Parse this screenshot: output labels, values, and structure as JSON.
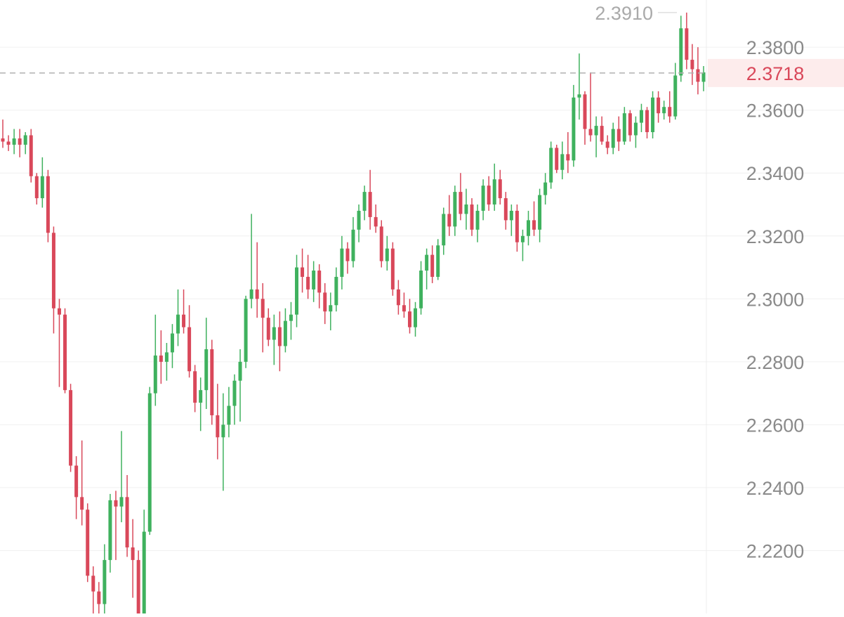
{
  "chart_data": {
    "type": "candlestick",
    "title": "",
    "xlabel": "",
    "ylabel": "",
    "ylim": [
      2.2,
      2.395
    ],
    "y_ticks": [
      "2.2200",
      "2.2400",
      "2.2600",
      "2.2800",
      "2.3000",
      "2.3200",
      "2.3400",
      "2.3600",
      "2.3800"
    ],
    "y_tick_values": [
      2.22,
      2.24,
      2.26,
      2.28,
      2.3,
      2.32,
      2.34,
      2.36,
      2.38
    ],
    "grid": true,
    "current_price": {
      "value": 2.3718,
      "label": "2.3718"
    },
    "high_marker": {
      "value": 2.391,
      "label": "2.3910"
    },
    "colors": {
      "up": "#3fb15e",
      "down": "#d9485a",
      "grid": "#f0f0f0",
      "axis_text": "#8a8a8a",
      "price_tag_bg": "#fdecec",
      "price_tag_text": "#d9485a",
      "dashed_line": "#b0b0b0"
    },
    "candles": [
      [
        2.351,
        2.357,
        2.348,
        2.35
      ],
      [
        2.35,
        2.352,
        2.347,
        2.349
      ],
      [
        2.349,
        2.354,
        2.346,
        2.351
      ],
      [
        2.351,
        2.354,
        2.345,
        2.349
      ],
      [
        2.349,
        2.353,
        2.346,
        2.352
      ],
      [
        2.352,
        2.354,
        2.337,
        2.339
      ],
      [
        2.339,
        2.34,
        2.33,
        2.332
      ],
      [
        2.332,
        2.345,
        2.329,
        2.339
      ],
      [
        2.339,
        2.341,
        2.318,
        2.321
      ],
      [
        2.321,
        2.323,
        2.289,
        2.297
      ],
      [
        2.297,
        2.3,
        2.272,
        2.295
      ],
      [
        2.295,
        2.297,
        2.27,
        2.271
      ],
      [
        2.271,
        2.273,
        2.245,
        2.247
      ],
      [
        2.247,
        2.25,
        2.23,
        2.237
      ],
      [
        2.237,
        2.255,
        2.228,
        2.233
      ],
      [
        2.233,
        2.235,
        2.21,
        2.212
      ],
      [
        2.212,
        2.215,
        2.198,
        2.207
      ],
      [
        2.207,
        2.21,
        2.2,
        2.203
      ],
      [
        2.203,
        2.222,
        2.2,
        2.217
      ],
      [
        2.217,
        2.238,
        2.213,
        2.236
      ],
      [
        2.236,
        2.239,
        2.217,
        2.234
      ],
      [
        2.234,
        2.258,
        2.229,
        2.237
      ],
      [
        2.237,
        2.244,
        2.218,
        2.221
      ],
      [
        2.221,
        2.23,
        2.205,
        2.217
      ],
      [
        2.217,
        2.22,
        2.195,
        2.196
      ],
      [
        2.196,
        2.233,
        2.195,
        2.226
      ],
      [
        2.226,
        2.272,
        2.225,
        2.27
      ],
      [
        2.27,
        2.295,
        2.266,
        2.282
      ],
      [
        2.282,
        2.29,
        2.273,
        2.28
      ],
      [
        2.28,
        2.286,
        2.274,
        2.283
      ],
      [
        2.283,
        2.292,
        2.278,
        2.289
      ],
      [
        2.289,
        2.303,
        2.285,
        2.295
      ],
      [
        2.295,
        2.303,
        2.289,
        2.291
      ],
      [
        2.291,
        2.298,
        2.275,
        2.277
      ],
      [
        2.277,
        2.279,
        2.264,
        2.267
      ],
      [
        2.267,
        2.275,
        2.258,
        2.271
      ],
      [
        2.271,
        2.294,
        2.265,
        2.284
      ],
      [
        2.284,
        2.287,
        2.26,
        2.263
      ],
      [
        2.263,
        2.273,
        2.249,
        2.256
      ],
      [
        2.256,
        2.27,
        2.239,
        2.26
      ],
      [
        2.26,
        2.272,
        2.256,
        2.266
      ],
      [
        2.266,
        2.276,
        2.26,
        2.274
      ],
      [
        2.274,
        2.284,
        2.261,
        2.28
      ],
      [
        2.28,
        2.301,
        2.278,
        2.3
      ],
      [
        2.3,
        2.327,
        2.297,
        2.303
      ],
      [
        2.303,
        2.318,
        2.294,
        2.3
      ],
      [
        2.3,
        2.305,
        2.283,
        2.294
      ],
      [
        2.294,
        2.297,
        2.285,
        2.287
      ],
      [
        2.287,
        2.295,
        2.279,
        2.291
      ],
      [
        2.291,
        2.296,
        2.277,
        2.285
      ],
      [
        2.285,
        2.297,
        2.283,
        2.293
      ],
      [
        2.293,
        2.299,
        2.287,
        2.295
      ],
      [
        2.295,
        2.314,
        2.291,
        2.31
      ],
      [
        2.31,
        2.316,
        2.302,
        2.307
      ],
      [
        2.307,
        2.314,
        2.3,
        2.303
      ],
      [
        2.303,
        2.312,
        2.299,
        2.309
      ],
      [
        2.309,
        2.311,
        2.297,
        2.302
      ],
      [
        2.302,
        2.305,
        2.292,
        2.296
      ],
      [
        2.296,
        2.302,
        2.29,
        2.298
      ],
      [
        2.298,
        2.31,
        2.296,
        2.307
      ],
      [
        2.307,
        2.32,
        2.303,
        2.316
      ],
      [
        2.316,
        2.318,
        2.308,
        2.312
      ],
      [
        2.312,
        2.326,
        2.31,
        2.322
      ],
      [
        2.322,
        2.33,
        2.318,
        2.328
      ],
      [
        2.328,
        2.336,
        2.325,
        2.334
      ],
      [
        2.334,
        2.341,
        2.322,
        2.326
      ],
      [
        2.326,
        2.33,
        2.321,
        2.323
      ],
      [
        2.323,
        2.325,
        2.31,
        2.312
      ],
      [
        2.312,
        2.32,
        2.309,
        2.316
      ],
      [
        2.316,
        2.318,
        2.301,
        2.303
      ],
      [
        2.303,
        2.306,
        2.295,
        2.298
      ],
      [
        2.298,
        2.302,
        2.294,
        2.296
      ],
      [
        2.296,
        2.3,
        2.289,
        2.291
      ],
      [
        2.291,
        2.299,
        2.288,
        2.297
      ],
      [
        2.297,
        2.312,
        2.295,
        2.309
      ],
      [
        2.309,
        2.316,
        2.303,
        2.314
      ],
      [
        2.314,
        2.317,
        2.305,
        2.307
      ],
      [
        2.307,
        2.319,
        2.306,
        2.317
      ],
      [
        2.317,
        2.329,
        2.314,
        2.327
      ],
      [
        2.327,
        2.333,
        2.32,
        2.323
      ],
      [
        2.323,
        2.336,
        2.32,
        2.334
      ],
      [
        2.334,
        2.34,
        2.325,
        2.327
      ],
      [
        2.327,
        2.335,
        2.322,
        2.33
      ],
      [
        2.33,
        2.332,
        2.32,
        2.322
      ],
      [
        2.322,
        2.33,
        2.318,
        2.328
      ],
      [
        2.328,
        2.338,
        2.325,
        2.336
      ],
      [
        2.336,
        2.339,
        2.328,
        2.33
      ],
      [
        2.33,
        2.343,
        2.328,
        2.338
      ],
      [
        2.338,
        2.341,
        2.33,
        2.332
      ],
      [
        2.332,
        2.334,
        2.322,
        2.325
      ],
      [
        2.325,
        2.33,
        2.32,
        2.328
      ],
      [
        2.328,
        2.33,
        2.315,
        2.318
      ],
      [
        2.318,
        2.322,
        2.312,
        2.32
      ],
      [
        2.32,
        2.328,
        2.317,
        2.325
      ],
      [
        2.325,
        2.331,
        2.32,
        2.322
      ],
      [
        2.322,
        2.335,
        2.318,
        2.333
      ],
      [
        2.333,
        2.34,
        2.33,
        2.337
      ],
      [
        2.337,
        2.35,
        2.335,
        2.348
      ],
      [
        2.348,
        2.349,
        2.34,
        2.341
      ],
      [
        2.341,
        2.35,
        2.338,
        2.346
      ],
      [
        2.346,
        2.353,
        2.34,
        2.344
      ],
      [
        2.344,
        2.368,
        2.342,
        2.364
      ],
      [
        2.364,
        2.378,
        2.357,
        2.365
      ],
      [
        2.365,
        2.366,
        2.349,
        2.354
      ],
      [
        2.354,
        2.372,
        2.35,
        2.352
      ],
      [
        2.352,
        2.358,
        2.345,
        2.355
      ],
      [
        2.355,
        2.358,
        2.349,
        2.35
      ],
      [
        2.35,
        2.352,
        2.346,
        2.348
      ],
      [
        2.348,
        2.356,
        2.346,
        2.354
      ],
      [
        2.354,
        2.358,
        2.347,
        2.35
      ],
      [
        2.35,
        2.361,
        2.349,
        2.359
      ],
      [
        2.359,
        2.36,
        2.35,
        2.352
      ],
      [
        2.352,
        2.358,
        2.348,
        2.356
      ],
      [
        2.356,
        2.362,
        2.353,
        2.36
      ],
      [
        2.36,
        2.361,
        2.351,
        2.353
      ],
      [
        2.353,
        2.366,
        2.351,
        2.364
      ],
      [
        2.364,
        2.366,
        2.356,
        2.359
      ],
      [
        2.359,
        2.363,
        2.357,
        2.361
      ],
      [
        2.361,
        2.366,
        2.356,
        2.358
      ],
      [
        2.358,
        2.375,
        2.357,
        2.371
      ],
      [
        2.371,
        2.39,
        2.369,
        2.386
      ],
      [
        2.386,
        2.391,
        2.373,
        2.376
      ],
      [
        2.376,
        2.381,
        2.368,
        2.373
      ],
      [
        2.373,
        2.38,
        2.365,
        2.369
      ],
      [
        2.369,
        2.374,
        2.366,
        2.372
      ]
    ]
  }
}
